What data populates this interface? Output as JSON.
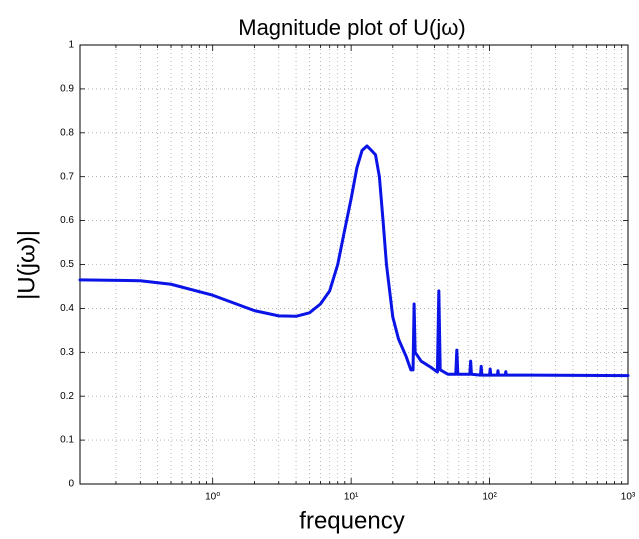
{
  "chart_data": {
    "type": "line",
    "title": "Magnitude plot of U(jω)",
    "x_label": "frequency",
    "y_label": "|U(jω)|",
    "x_scale": "log",
    "grid": true,
    "minor_grid": true,
    "color": "#0a14e6",
    "xlim": [
      0.11,
      1000
    ],
    "ylim": [
      0,
      1
    ],
    "xticks": [
      {
        "value": 1,
        "label": "10⁰"
      },
      {
        "value": 10,
        "label": "10¹"
      },
      {
        "value": 100,
        "label": "10²"
      },
      {
        "value": 1000,
        "label": "10³"
      }
    ],
    "yticks": [
      0,
      0.1,
      0.2,
      0.3,
      0.4,
      0.5,
      0.6,
      0.7,
      0.8,
      0.9,
      1
    ],
    "x": [
      0.11,
      0.3,
      0.5,
      1,
      2,
      3,
      4,
      5,
      6,
      7,
      8,
      9,
      10,
      11,
      12,
      13,
      14,
      15,
      16,
      17,
      18,
      20,
      22,
      25,
      27,
      28,
      28.5,
      29,
      32,
      38,
      42,
      43,
      44,
      50,
      57,
      58,
      59,
      72,
      73,
      74,
      86,
      87,
      88,
      100,
      101,
      102,
      114,
      115,
      116,
      130,
      131,
      132,
      200,
      1000
    ],
    "values": [
      0.465,
      0.463,
      0.455,
      0.43,
      0.395,
      0.383,
      0.382,
      0.39,
      0.41,
      0.44,
      0.5,
      0.58,
      0.65,
      0.72,
      0.76,
      0.77,
      0.76,
      0.75,
      0.7,
      0.6,
      0.5,
      0.38,
      0.33,
      0.29,
      0.26,
      0.26,
      0.41,
      0.3,
      0.28,
      0.265,
      0.255,
      0.44,
      0.26,
      0.25,
      0.25,
      0.305,
      0.25,
      0.25,
      0.28,
      0.25,
      0.248,
      0.268,
      0.248,
      0.248,
      0.262,
      0.248,
      0.248,
      0.258,
      0.248,
      0.248,
      0.256,
      0.248,
      0.248,
      0.247
    ]
  }
}
